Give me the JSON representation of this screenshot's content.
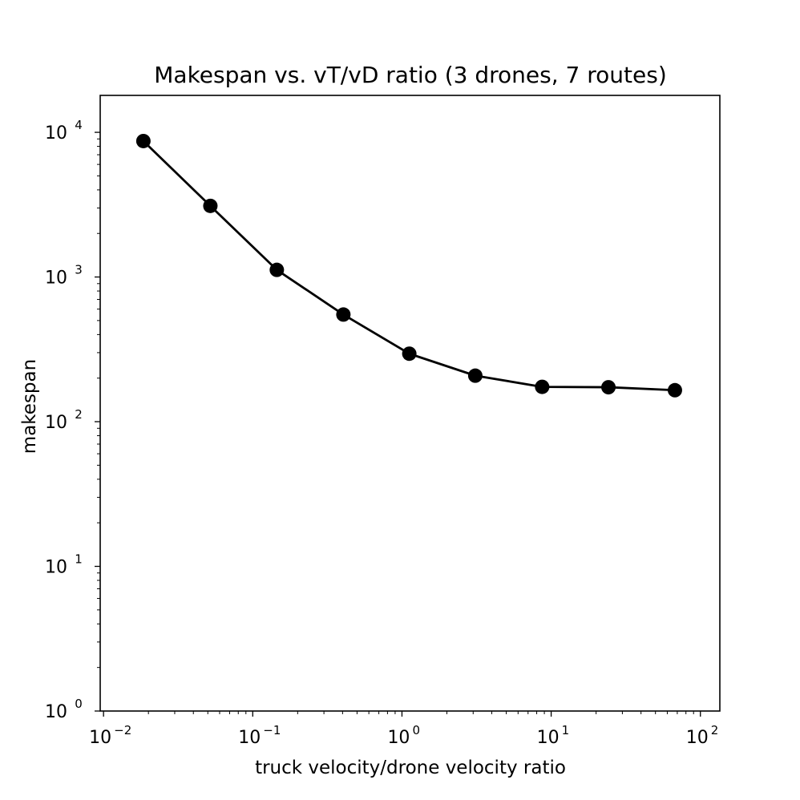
{
  "chart_data": {
    "type": "line",
    "title": "Makespan vs. vT/vD ratio (3 drones, 7 routes)",
    "xlabel": "truck velocity/drone velocity ratio",
    "ylabel": "makespan",
    "xscale": "log",
    "yscale": "log",
    "xlim": [
      0.0095,
      135
    ],
    "ylim": [
      1,
      18000
    ],
    "x_ticks": [
      {
        "base": "10",
        "exp": "−2",
        "value": 0.01
      },
      {
        "base": "10",
        "exp": "−1",
        "value": 0.1
      },
      {
        "base": "10",
        "exp": "0",
        "value": 1
      },
      {
        "base": "10",
        "exp": "1",
        "value": 10
      },
      {
        "base": "10",
        "exp": "2",
        "value": 100
      }
    ],
    "y_ticks": [
      {
        "base": "10",
        "exp": "0",
        "value": 1
      },
      {
        "base": "10",
        "exp": "1",
        "value": 10
      },
      {
        "base": "10",
        "exp": "2",
        "value": 100
      },
      {
        "base": "10",
        "exp": "3",
        "value": 1000
      },
      {
        "base": "10",
        "exp": "4",
        "value": 10000
      }
    ],
    "grid": false,
    "series": [
      {
        "color": "#000000",
        "marker": "circle",
        "x": [
          0.0185,
          0.052,
          0.145,
          0.405,
          1.12,
          3.1,
          8.7,
          24.2,
          67.5
        ],
        "y": [
          8700,
          3100,
          1120,
          550,
          295,
          208,
          174,
          173,
          165
        ]
      }
    ]
  }
}
